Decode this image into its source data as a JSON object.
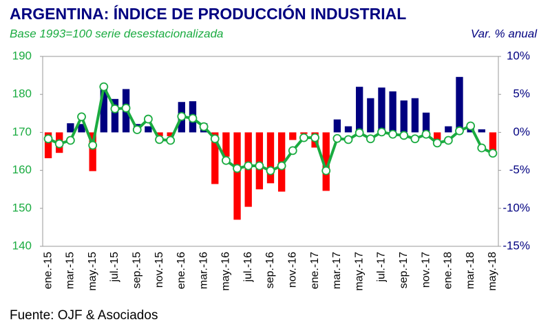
{
  "chart_data": {
    "type": "combo",
    "title": "ARGENTINA: ÍNDICE DE PRODUCCIÓN INDUSTRIAL",
    "subtitle": "Base 1993=100 serie desestacionalizada",
    "y2_label": "Var. % anual",
    "source": "Fuente: OJF & Asociados",
    "categories": [
      "ene.-15",
      null,
      "mar.-15",
      null,
      "may.-15",
      null,
      "jul.-15",
      null,
      "sep.-15",
      null,
      "nov.-15",
      null,
      "ene.-16",
      null,
      "mar.-16",
      null,
      "may.-16",
      null,
      "jul.-16",
      null,
      "sep.-16",
      null,
      "nov.-16",
      null,
      "ene.-17",
      null,
      "mar.-17",
      null,
      "may.-17",
      null,
      "jul.-17",
      null,
      "sep.-17",
      null,
      "nov.-17",
      null,
      "ene.-18",
      null,
      "mar.-18",
      null,
      "may.-18"
    ],
    "ylim": [
      140,
      190
    ],
    "yticks": [
      140,
      150,
      160,
      170,
      180,
      190
    ],
    "y2lim": [
      -15,
      10
    ],
    "y2ticks": [
      {
        "value": -15,
        "label": "-15%"
      },
      {
        "value": -10,
        "label": "-10%"
      },
      {
        "value": -5,
        "label": "-5%"
      },
      {
        "value": 0,
        "label": "0%"
      },
      {
        "value": 5,
        "label": "5%"
      },
      {
        "value": 10,
        "label": "10%"
      }
    ],
    "series": [
      {
        "type": "bar",
        "axis": "y2",
        "color": "#000080",
        "negative_color": "#ff0000",
        "values": [
          -3.4,
          -2.7,
          1.2,
          1.1,
          -5.1,
          6.2,
          4.4,
          5.7,
          1.1,
          0.8,
          -0.5,
          -0.5,
          4.0,
          4.1,
          1.2,
          -6.8,
          -3.2,
          -11.5,
          -9.8,
          -7.5,
          -6.7,
          -7.8,
          -1.0,
          -0.2,
          -2.0,
          -7.7,
          1.7,
          0.8,
          6.0,
          4.5,
          5.9,
          5.4,
          4.2,
          4.5,
          2.6,
          -1.0,
          0.8,
          7.3,
          1.0,
          0.4,
          -2.4
        ]
      },
      {
        "type": "line",
        "axis": "y",
        "color": "#1aab40",
        "values": [
          168.3,
          167.0,
          167.9,
          174.1,
          166.6,
          182.0,
          176.2,
          176.4,
          170.7,
          173.5,
          168.1,
          167.9,
          174.2,
          173.7,
          171.5,
          168.3,
          162.6,
          160.5,
          161.2,
          161.2,
          159.9,
          161.2,
          165.2,
          168.6,
          168.6,
          159.9,
          168.4,
          168.1,
          169.9,
          168.3,
          170.1,
          169.5,
          169.2,
          168.3,
          169.5,
          167.2,
          167.9,
          170.4,
          171.7,
          165.9,
          164.5
        ]
      }
    ]
  }
}
